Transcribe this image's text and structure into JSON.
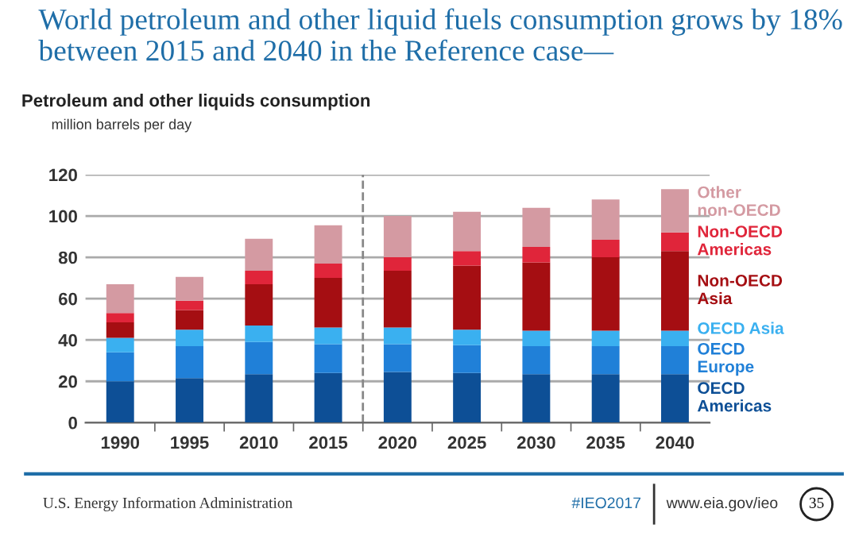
{
  "chart_data": {
    "type": "bar",
    "title": "World petroleum and other liquid fuels consumption grows by 18%\nbetween 2015 and 2040 in the Reference case—",
    "subtitle": "Petroleum and other liquids consumption",
    "ylabel": "million barrels per day",
    "categories": [
      "1990",
      "1995",
      "2010",
      "2015",
      "2020",
      "2025",
      "2030",
      "2035",
      "2040"
    ],
    "stacked": true,
    "series": [
      {
        "name": "OECD\nAmericas",
        "color": "#0d4f96",
        "values": [
          20,
          21.5,
          23.5,
          24,
          24.5,
          24,
          23.5,
          23.5,
          23.5
        ]
      },
      {
        "name": "OECD\nEurope",
        "color": "#2080d8",
        "values": [
          14,
          15.5,
          15.5,
          14,
          13.5,
          13.5,
          13.5,
          13.5,
          13.5
        ]
      },
      {
        "name": "OECD Asia",
        "color": "#3ab0f0",
        "values": [
          7,
          8,
          8,
          8,
          8,
          7.5,
          7.5,
          7.5,
          7.5
        ]
      },
      {
        "name": "Non-OECD\nAsia",
        "color": "#a50e12",
        "values": [
          7.5,
          9.5,
          20,
          24,
          27.5,
          31,
          33,
          35.5,
          38.5
        ]
      },
      {
        "name": "Non-OECD\nAmericas",
        "color": "#e0253a",
        "values": [
          4.5,
          4.5,
          6.5,
          7,
          6.5,
          7,
          7.5,
          8.5,
          9
        ]
      },
      {
        "name": "Other\nnon-OECD",
        "color": "#d49aa2",
        "values": [
          14,
          11.5,
          15.5,
          18.5,
          20,
          19,
          19,
          19.5,
          21
        ]
      }
    ],
    "ylim": [
      0,
      120
    ],
    "yticks": [
      0,
      20,
      40,
      60,
      80,
      100,
      120
    ],
    "grid": "y",
    "legend": "right",
    "ref_lines": [
      {
        "axis": "x",
        "value": "2020",
        "label": null,
        "color": "#888888",
        "line_style": "dashed"
      }
    ],
    "annotations": [
      "U.S. Energy Information Administration",
      "#IEO2017",
      "www.eia.gov/ieo",
      "35"
    ]
  }
}
